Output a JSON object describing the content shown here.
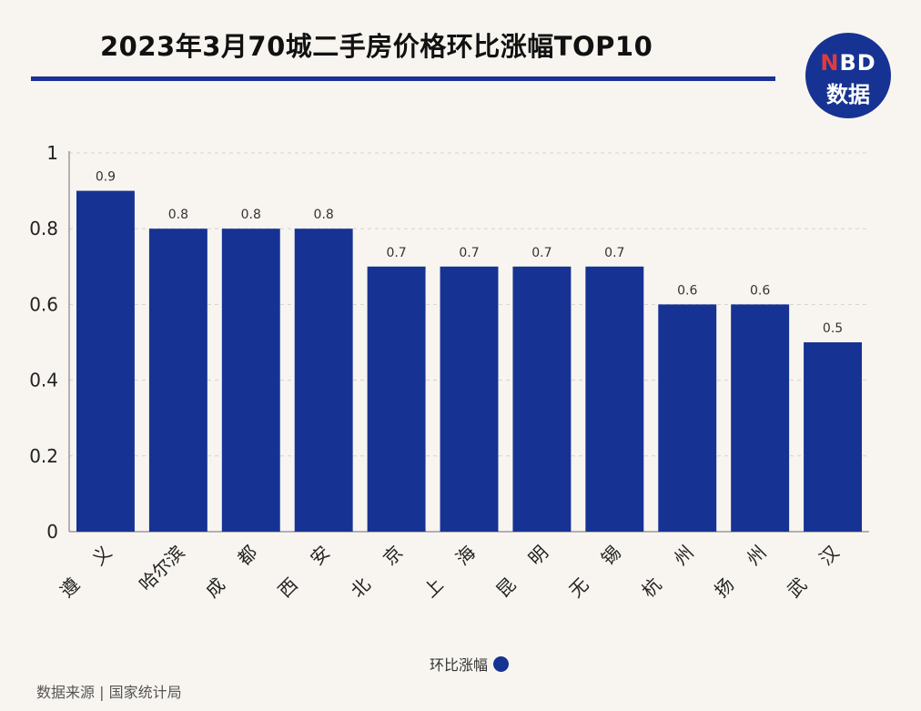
{
  "title": "2023年3月70城二手房价格环比涨幅TOP10",
  "logo": {
    "line1_n": "N",
    "line1_rest": "BD",
    "line2": "数据"
  },
  "source": "数据来源 | 国家统计局",
  "colors": {
    "bar": "#163393",
    "accent": "#1a3296",
    "background": "#f8f5f1"
  },
  "chart_data": {
    "type": "bar",
    "categories": [
      "遵义",
      "哈尔滨",
      "成都",
      "西安",
      "北京",
      "上海",
      "昆明",
      "无锡",
      "杭州",
      "扬州",
      "武汉"
    ],
    "category_labels": [
      [
        "遵",
        "义"
      ],
      [
        "哈尔滨"
      ],
      [
        "成",
        "都"
      ],
      [
        "西",
        "安"
      ],
      [
        "北",
        "京"
      ],
      [
        "上",
        "海"
      ],
      [
        "昆",
        "明"
      ],
      [
        "无",
        "锡"
      ],
      [
        "杭",
        "州"
      ],
      [
        "扬",
        "州"
      ],
      [
        "武",
        "汉"
      ]
    ],
    "series": [
      {
        "name": "环比涨幅",
        "values": [
          0.9,
          0.8,
          0.8,
          0.8,
          0.7,
          0.7,
          0.7,
          0.7,
          0.6,
          0.6,
          0.5
        ]
      }
    ],
    "ylim": [
      0,
      1
    ],
    "yticks": [
      "0",
      "0.2",
      "0.4",
      "0.6",
      "0.8",
      "1"
    ],
    "grid": true,
    "legend_position": "bottom-center"
  }
}
